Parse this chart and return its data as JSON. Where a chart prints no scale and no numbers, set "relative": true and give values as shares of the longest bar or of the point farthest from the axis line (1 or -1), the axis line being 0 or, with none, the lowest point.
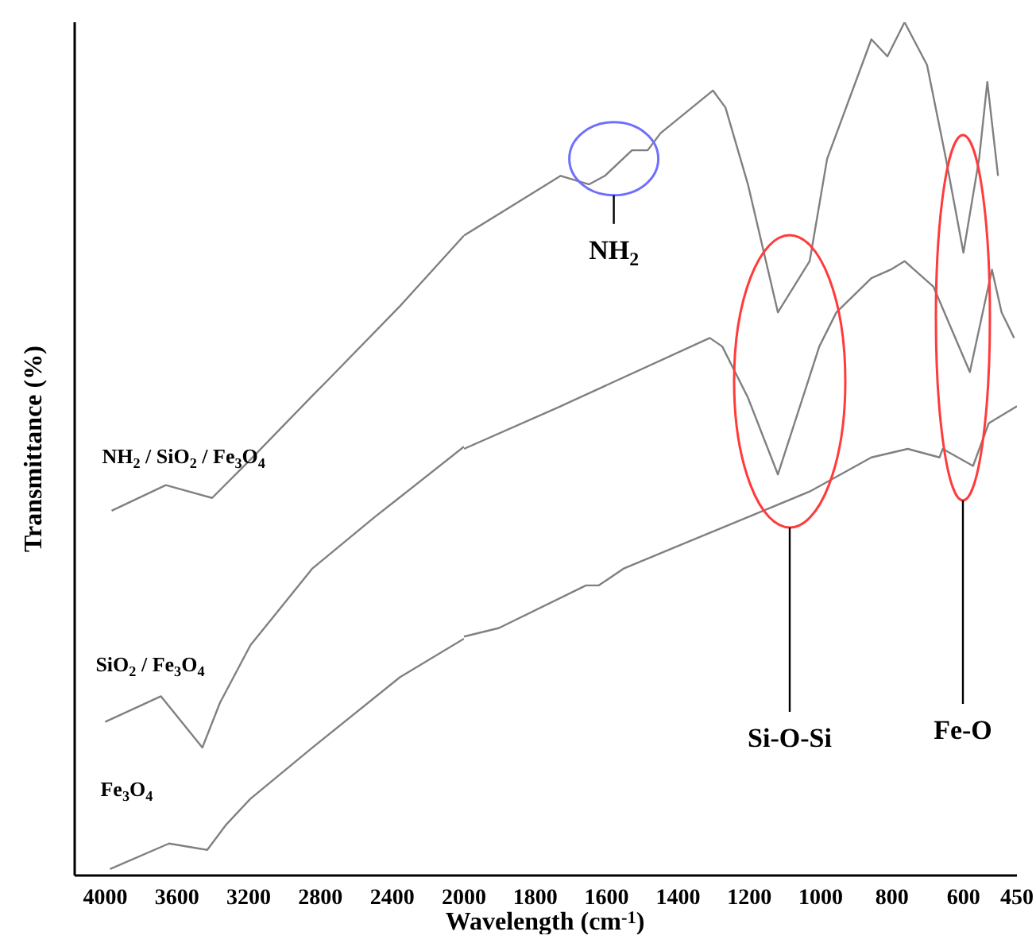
{
  "chart_data": [
    {
      "type": "line",
      "relative": true,
      "ylabel": "Transmittance (%)",
      "xlabel": "Wavelength (cm$^{-1}$)",
      "xlim": [
        4170,
        2000
      ],
      "xticks": [
        4000,
        3600,
        3200,
        2800,
        2400,
        2000
      ],
      "tick_labels": "x",
      "series": [
        {
          "name": "NH$_{2}$ / SiO$_{2}$ / Fe$_{3}$O$_{4}$",
          "color": "#808080",
          "x": [
            3964,
            3662,
            3404,
            3190,
            2844,
            2773,
            2356,
            2000
          ],
          "values": [
            0.57,
            0.61,
            0.59,
            0.65,
            0.75,
            0.77,
            0.89,
            1.0
          ]
        },
        {
          "name": "SiO$_{2}$ / Fe$_{3}$O$_{4}$",
          "color": "#808080",
          "x": [
            4000,
            3689,
            3458,
            3360,
            3190,
            2844,
            2498,
            2000
          ],
          "values": [
            0.24,
            0.28,
            0.2,
            0.27,
            0.36,
            0.48,
            0.56,
            0.67
          ]
        },
        {
          "name": "Fe$_{3}$O$_{4}$",
          "color": "#808080",
          "x": [
            3973,
            3644,
            3431,
            3324,
            3190,
            2844,
            2356,
            2000
          ],
          "values": [
            0.01,
            0.05,
            0.04,
            0.08,
            0.12,
            0.2,
            0.31,
            0.37
          ]
        }
      ]
    },
    {
      "type": "line",
      "relative": true,
      "xlim": [
        2000,
        450
      ],
      "xticks": [
        1800,
        1600,
        1400,
        1200,
        1000,
        800,
        600,
        450
      ],
      "tick_labels": "x",
      "series": [
        {
          "color": "#808080",
          "x": [
            2000,
            1729,
            1649,
            1605,
            1529,
            1485,
            1449,
            1302,
            1267,
            1204,
            1120,
            1031,
            982,
            858,
            813,
            765,
            702,
            649,
            600,
            556,
            533,
            503
          ],
          "values": [
            0.75,
            0.82,
            0.81,
            0.82,
            0.85,
            0.85,
            0.87,
            0.92,
            0.9,
            0.81,
            0.66,
            0.72,
            0.84,
            0.98,
            0.96,
            1.0,
            0.95,
            0.84,
            0.73,
            0.84,
            0.93,
            0.82
          ]
        },
        {
          "color": "#808080",
          "x": [
            2000,
            1729,
            1311,
            1276,
            1204,
            1120,
            1004,
            956,
            858,
            804,
            765,
            684,
            582,
            520,
            493,
            458
          ],
          "values": [
            0.5,
            0.55,
            0.63,
            0.62,
            0.56,
            0.47,
            0.62,
            0.66,
            0.7,
            0.71,
            0.72,
            0.69,
            0.59,
            0.71,
            0.66,
            0.63
          ]
        },
        {
          "color": "#808080",
          "x": [
            2000,
            1902,
            1658,
            1622,
            1551,
            1378,
            1204,
            1031,
            858,
            756,
            667,
            658,
            573,
            529,
            450
          ],
          "values": [
            0.28,
            0.29,
            0.34,
            0.34,
            0.36,
            0.39,
            0.42,
            0.45,
            0.49,
            0.5,
            0.49,
            0.5,
            0.48,
            0.53,
            0.55
          ]
        }
      ],
      "annotations": [
        {
          "text": "NH$_{2}$",
          "x": 1580,
          "y": 0.84
        },
        "Si-O-Si",
        "Fe-O"
      ]
    }
  ]
}
